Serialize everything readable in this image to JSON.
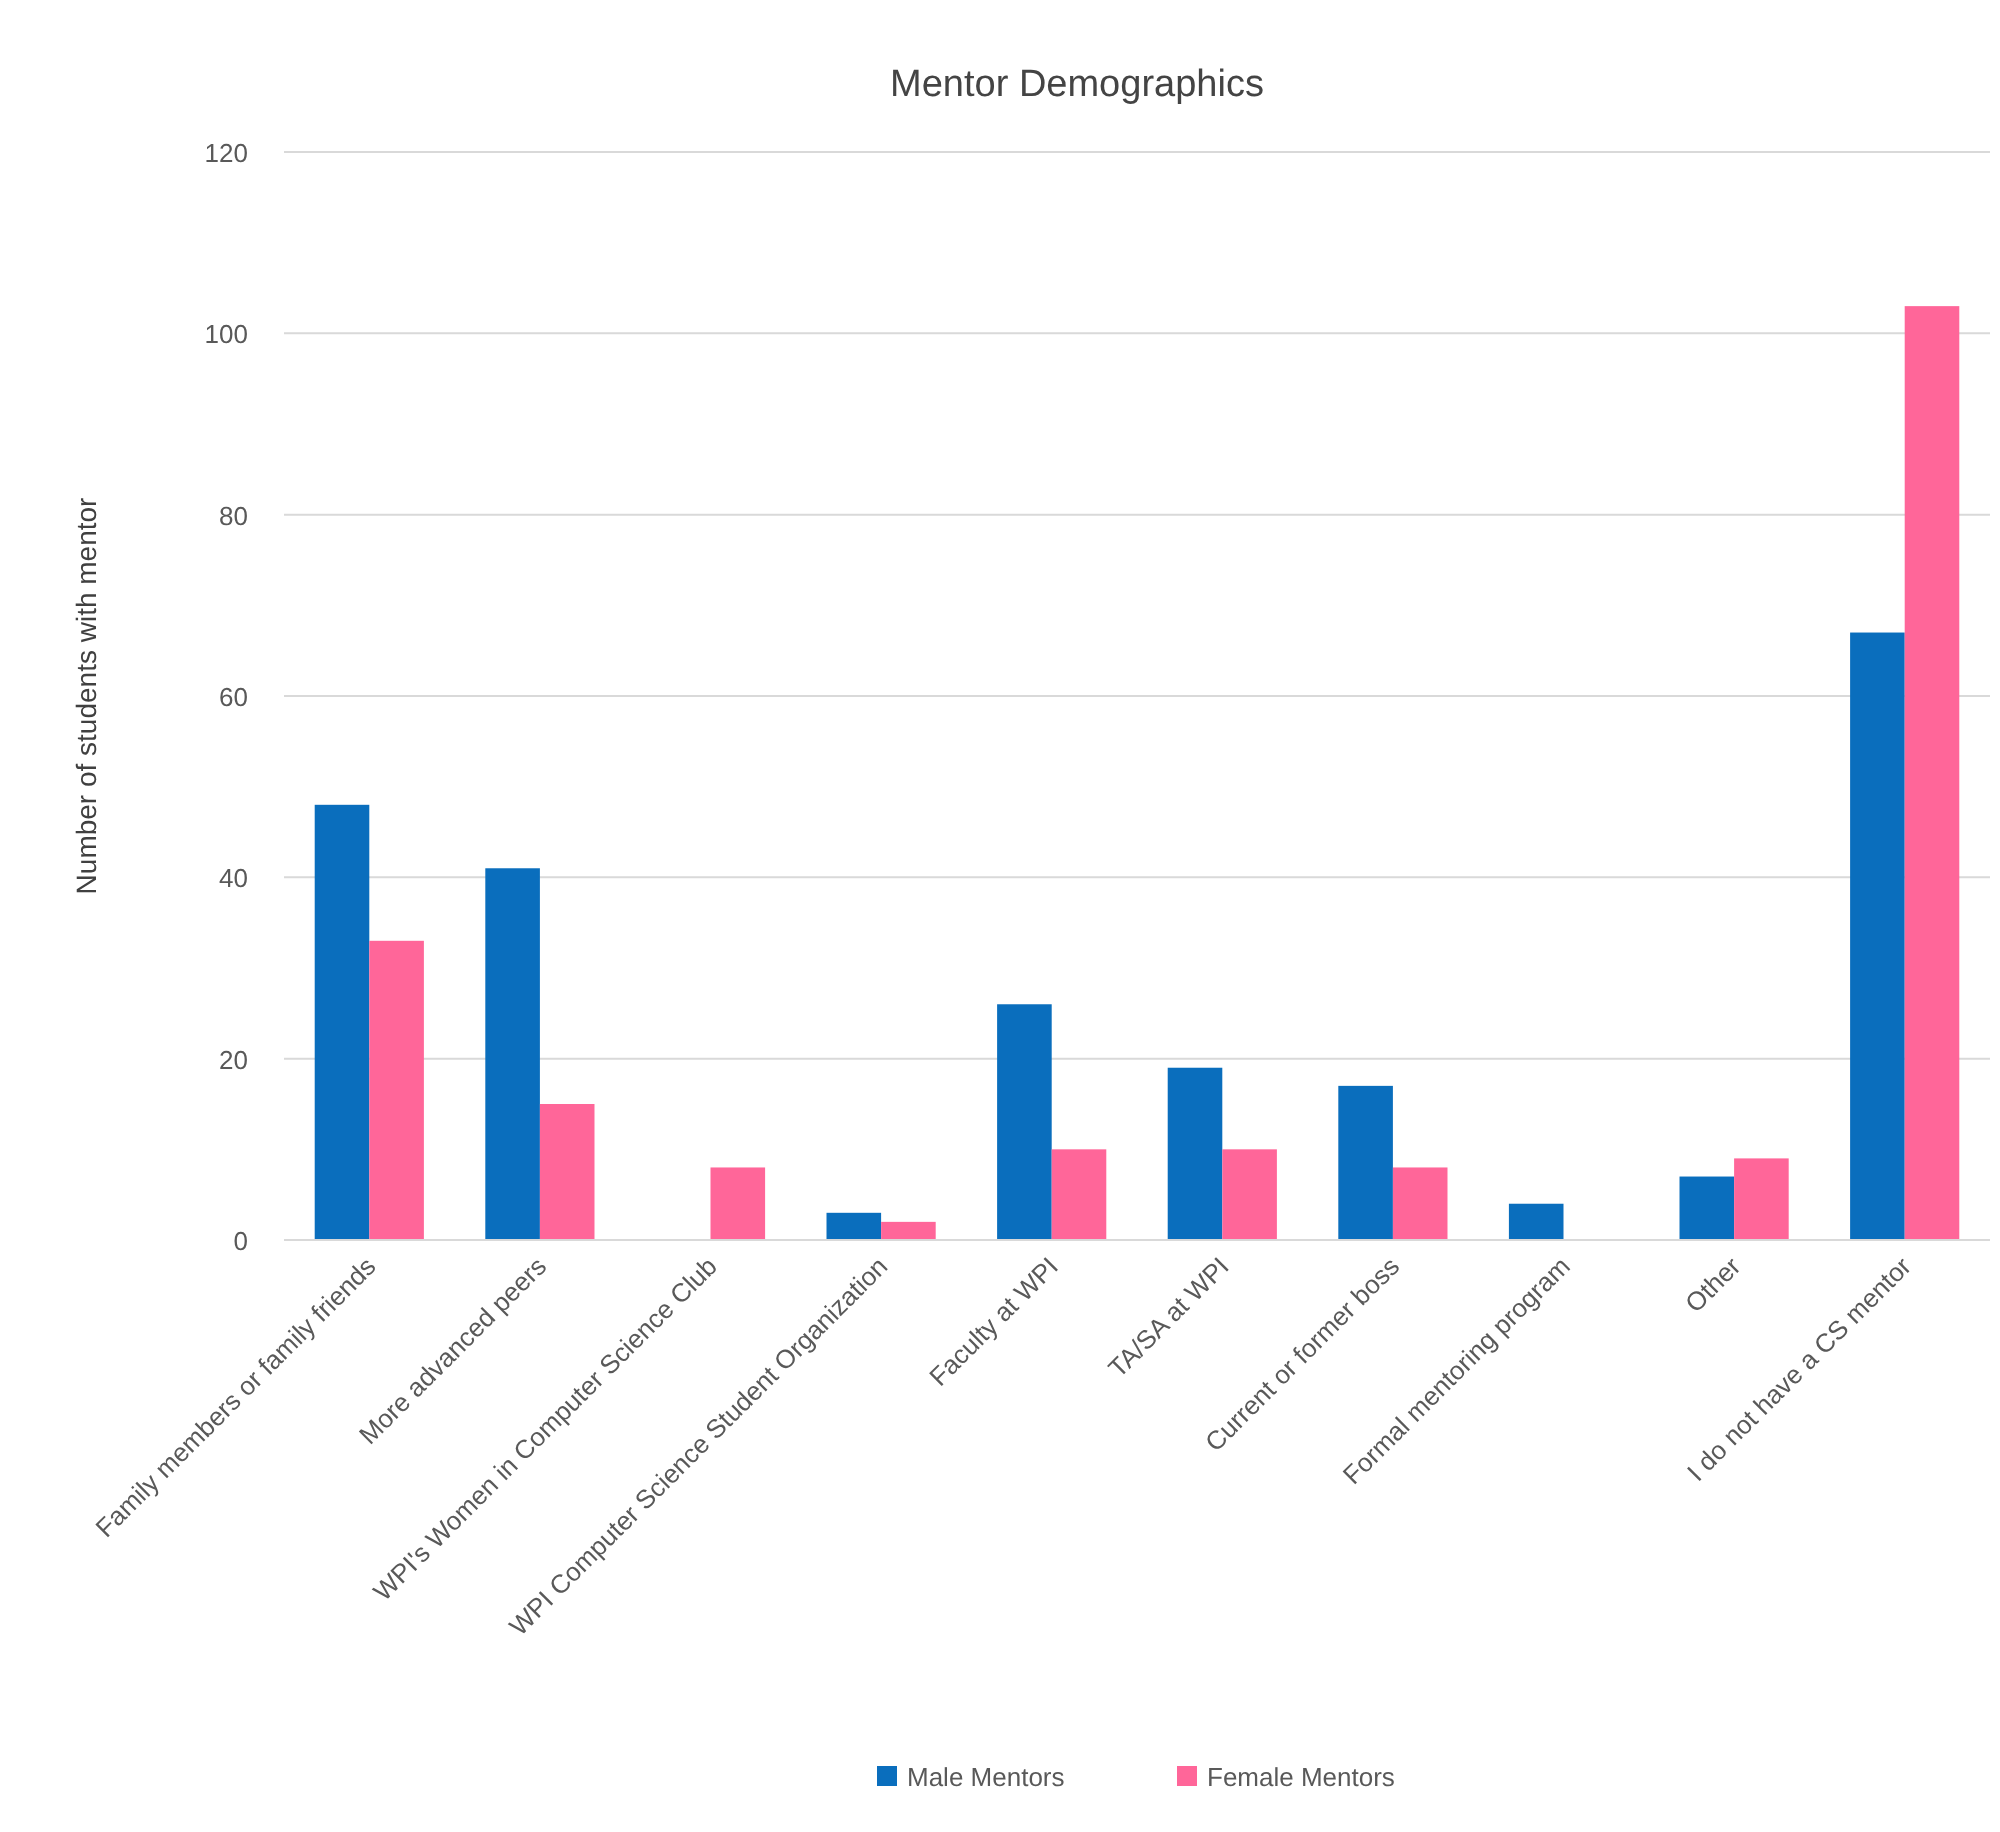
{
  "chart_data": {
    "type": "bar",
    "title": "Mentor Demographics",
    "ylabel": "Number of students with mentor",
    "categories": [
      "Family members or family friends",
      "More advanced peers",
      "WPI's Women in Computer Science Club",
      "WPI Computer Science Student Organization",
      "Faculty at WPI",
      "TA/SA at WPI",
      "Current or former boss",
      "Formal mentoring program",
      "Other",
      "I do not have a CS mentor"
    ],
    "series": [
      {
        "name": "Male Mentors",
        "color": "#0a6ebd",
        "values": [
          48,
          41,
          0,
          3,
          26,
          19,
          17,
          4,
          7,
          67
        ]
      },
      {
        "name": "Female Mentors",
        "color": "#ff6699",
        "values": [
          33,
          15,
          8,
          2,
          10,
          10,
          8,
          0,
          9,
          103
        ]
      }
    ],
    "ylim": [
      0,
      120
    ],
    "yticks": [
      0,
      20,
      40,
      60,
      80,
      100,
      120
    ],
    "grid": "y",
    "legend": "bottom"
  }
}
